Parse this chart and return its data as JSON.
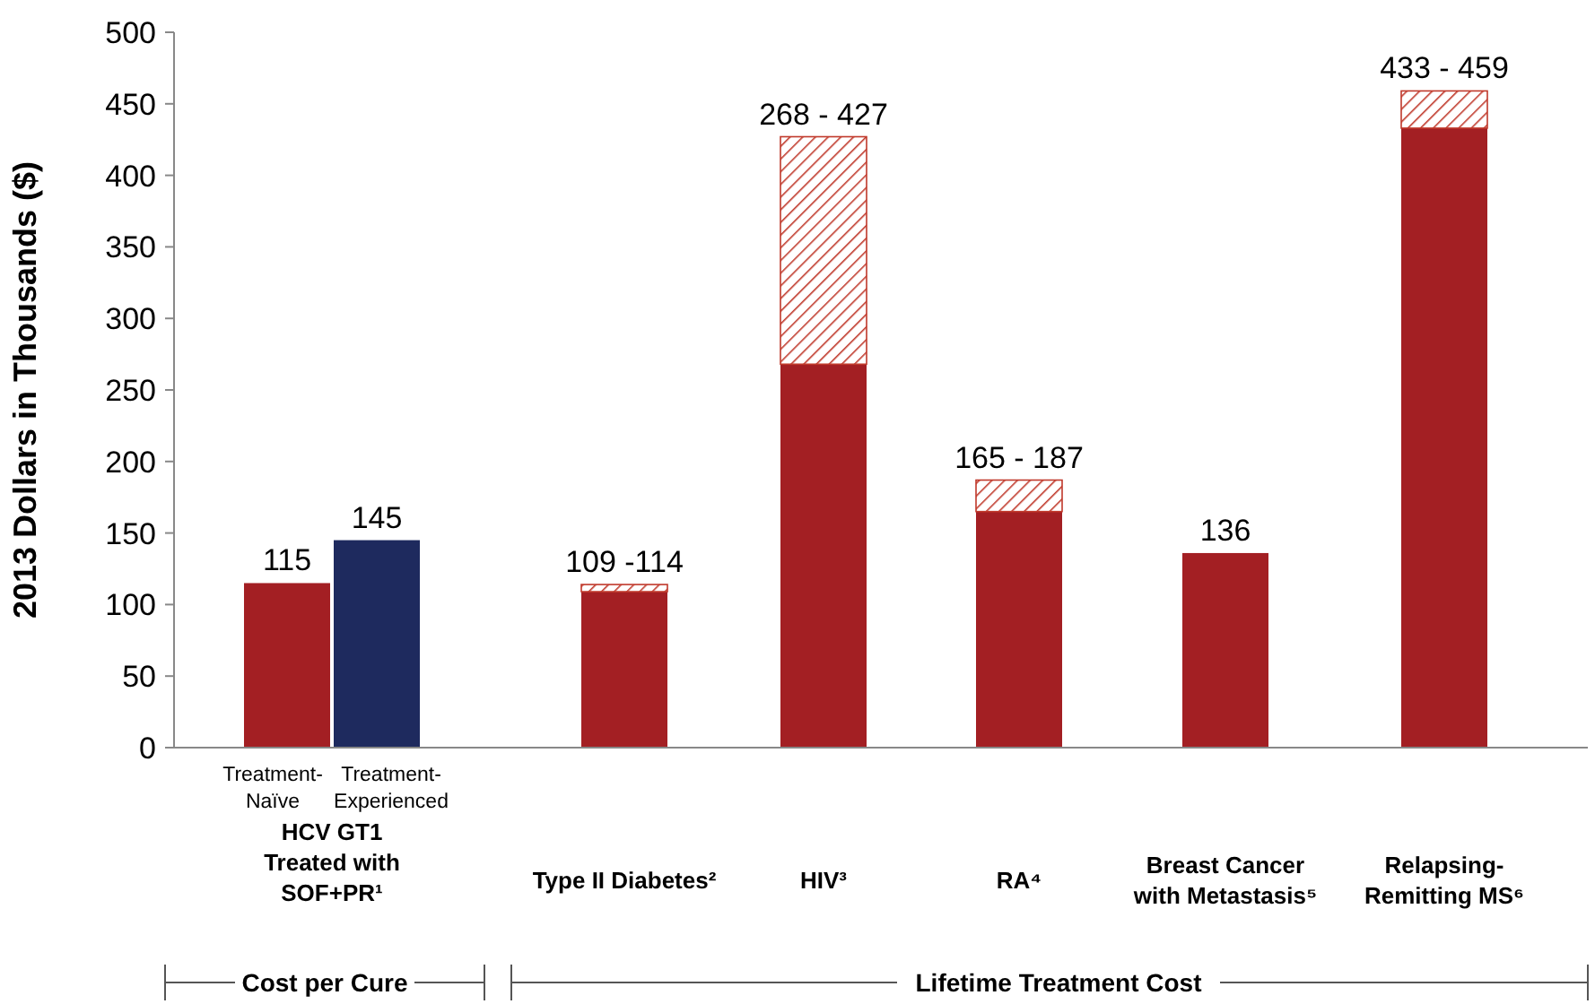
{
  "chart_data": {
    "type": "bar",
    "ylabel": "2013 Dollars in Thousands ($)",
    "categories": [
      "Treatment-Naïve",
      "Treatment-Experienced",
      "Type II Diabetes²",
      "HIV³",
      "RA⁴",
      "Breast Cancer with Metastasis⁵",
      "Relapsing-Remitting MS⁶"
    ],
    "stacked": true,
    "series": [
      {
        "color": "#a31f23",
        "values": [
          115,
          null,
          109,
          268,
          165,
          136,
          433
        ]
      },
      {
        "color": "#1e2a5e",
        "values": [
          null,
          145,
          null,
          null,
          null,
          null,
          null
        ]
      },
      {
        "color": "#c0392b",
        "values": [
          null,
          null,
          5,
          159,
          22,
          null,
          26
        ]
      }
    ],
    "totals": [
      "115",
      "145",
      "109 -114",
      "268 - 427",
      "165 - 187",
      "136",
      "433 - 459"
    ],
    "ylim": [
      0,
      500
    ],
    "yticks": [
      0,
      50,
      100,
      150,
      200,
      250,
      300,
      350,
      400,
      450,
      500
    ],
    "grid": false,
    "annotations": [
      "HCV GT1 Treated with SOF+PR¹",
      "Cost per Cure",
      "Lifetime Treatment Cost"
    ]
  }
}
